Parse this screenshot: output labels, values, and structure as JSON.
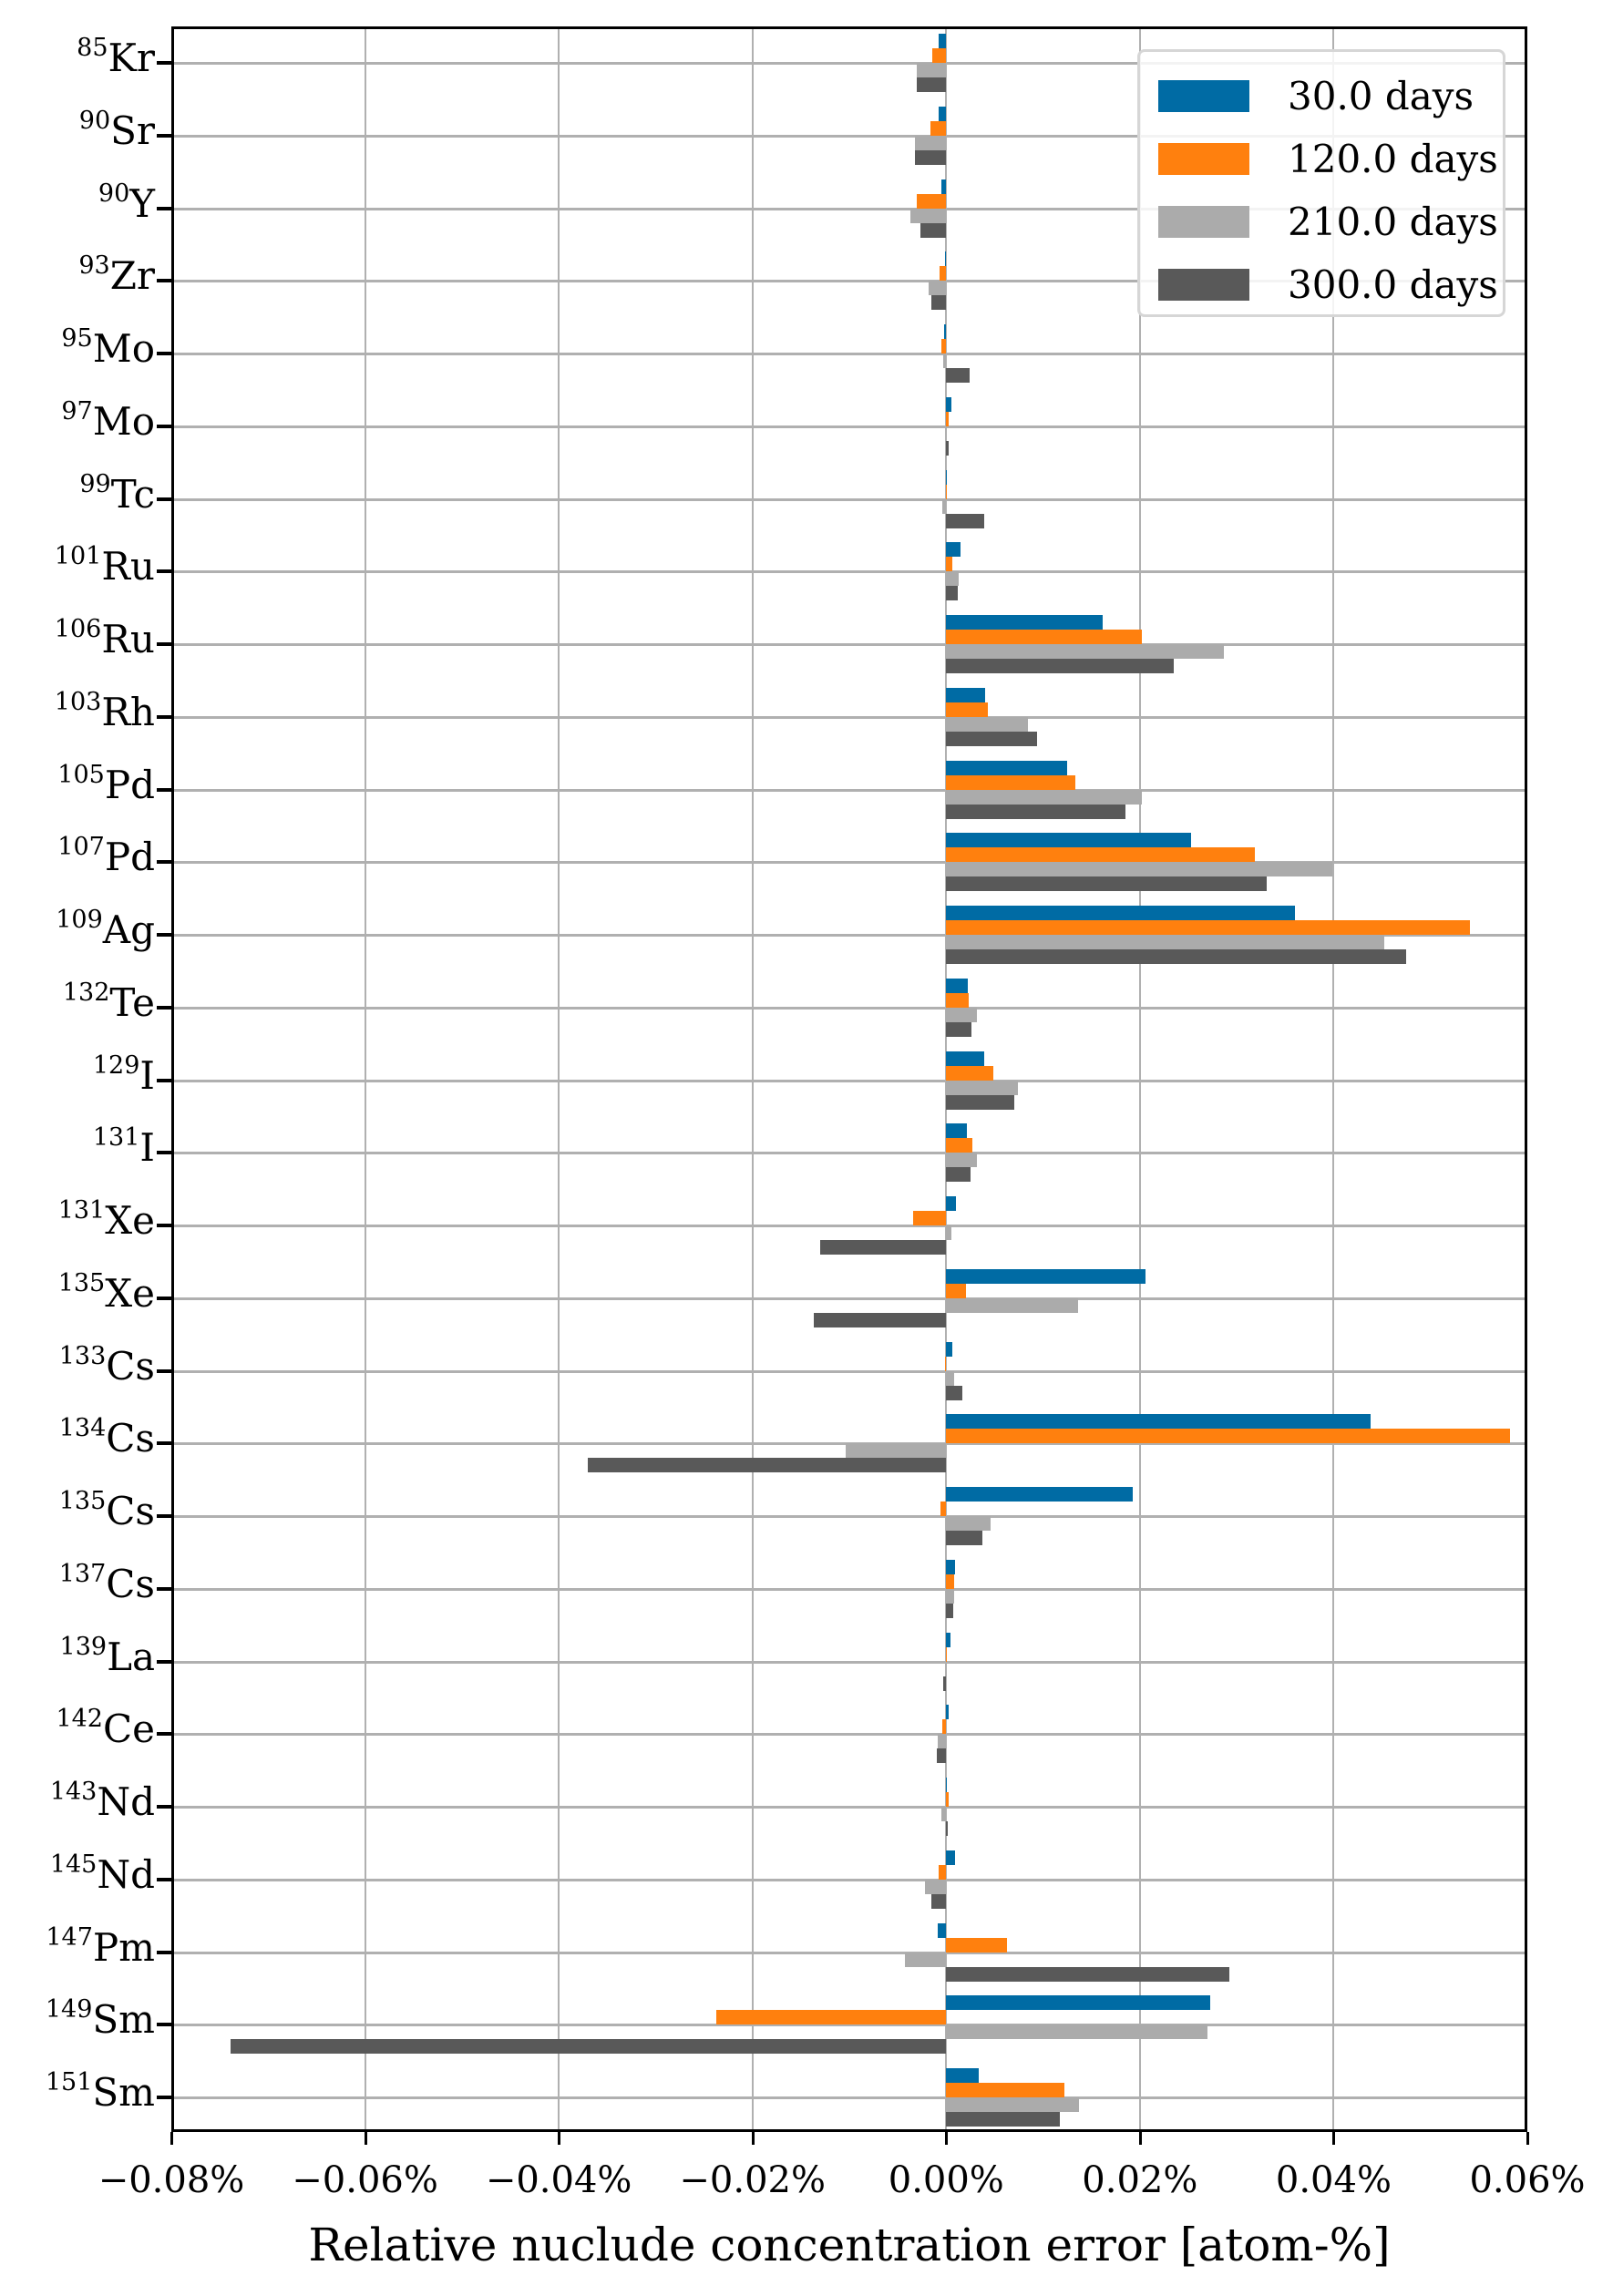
{
  "chart_data": {
    "type": "bar",
    "orientation": "horizontal",
    "title": "",
    "xlabel": "Relative nuclude concentration error [atom-%]",
    "ylabel": "",
    "xlim": [
      -0.08,
      0.06
    ],
    "xticks": [
      -0.08,
      -0.06,
      -0.04,
      -0.02,
      0.0,
      0.02,
      0.04,
      0.06
    ],
    "xtick_labels": [
      "−0.08%",
      "−0.06%",
      "−0.04%",
      "−0.02%",
      "0.00%",
      "0.02%",
      "0.04%",
      "0.06%"
    ],
    "grid": true,
    "legend_position": "upper right",
    "categories": [
      {
        "mass": "85",
        "element": "Kr"
      },
      {
        "mass": "90",
        "element": "Sr"
      },
      {
        "mass": "90",
        "element": "Y"
      },
      {
        "mass": "93",
        "element": "Zr"
      },
      {
        "mass": "95",
        "element": "Mo"
      },
      {
        "mass": "97",
        "element": "Mo"
      },
      {
        "mass": "99",
        "element": "Tc"
      },
      {
        "mass": "101",
        "element": "Ru"
      },
      {
        "mass": "106",
        "element": "Ru"
      },
      {
        "mass": "103",
        "element": "Rh"
      },
      {
        "mass": "105",
        "element": "Pd"
      },
      {
        "mass": "107",
        "element": "Pd"
      },
      {
        "mass": "109",
        "element": "Ag"
      },
      {
        "mass": "132",
        "element": "Te"
      },
      {
        "mass": "129",
        "element": "I"
      },
      {
        "mass": "131",
        "element": "I"
      },
      {
        "mass": "131",
        "element": "Xe"
      },
      {
        "mass": "135",
        "element": "Xe"
      },
      {
        "mass": "133",
        "element": "Cs"
      },
      {
        "mass": "134",
        "element": "Cs"
      },
      {
        "mass": "135",
        "element": "Cs"
      },
      {
        "mass": "137",
        "element": "Cs"
      },
      {
        "mass": "139",
        "element": "La"
      },
      {
        "mass": "142",
        "element": "Ce"
      },
      {
        "mass": "143",
        "element": "Nd"
      },
      {
        "mass": "145",
        "element": "Nd"
      },
      {
        "mass": "147",
        "element": "Pm"
      },
      {
        "mass": "149",
        "element": "Sm"
      },
      {
        "mass": "151",
        "element": "Sm"
      }
    ],
    "series": [
      {
        "name": "30.0 days",
        "color": "#006ba4",
        "values": [
          -0.0008,
          -0.0008,
          -0.0005,
          -0.0001,
          -0.0002,
          0.0005,
          0.0,
          0.0015,
          0.0162,
          0.004,
          0.0125,
          0.0253,
          0.036,
          0.0022,
          0.0039,
          0.0021,
          0.001,
          0.0206,
          0.0006,
          0.0438,
          0.0193,
          0.0009,
          0.0004,
          0.0003,
          0.0001,
          0.0009,
          -0.0009,
          0.0273,
          0.0034
        ]
      },
      {
        "name": "120.0 days",
        "color": "#ff800e",
        "values": [
          -0.0014,
          -0.0016,
          -0.003,
          -0.0007,
          -0.0005,
          0.0003,
          0.0001,
          0.0006,
          0.0202,
          0.0043,
          0.0133,
          0.0319,
          0.0541,
          0.0023,
          0.0049,
          0.0027,
          -0.0034,
          0.002,
          -0.0001,
          0.0582,
          -0.0006,
          0.0008,
          0.0001,
          -0.0004,
          0.0003,
          -0.0008,
          0.0063,
          -0.0237,
          0.0122
        ]
      },
      {
        "name": "210.0 days",
        "color": "#ababab",
        "values": [
          -0.003,
          -0.0032,
          -0.0037,
          -0.0018,
          -0.0003,
          0.0001,
          -0.0004,
          0.0013,
          0.0287,
          0.0084,
          0.0202,
          0.0399,
          0.0452,
          0.0032,
          0.0074,
          0.0032,
          0.0005,
          0.0136,
          0.0008,
          -0.0104,
          0.0046,
          0.0008,
          0.0,
          -0.0009,
          -0.0005,
          -0.0022,
          -0.0043,
          0.027,
          0.0137
        ]
      },
      {
        "name": "300.0 days",
        "color": "#595959",
        "values": [
          -0.003,
          -0.0032,
          -0.0027,
          -0.0015,
          0.0024,
          0.0003,
          0.0039,
          0.0012,
          0.0235,
          0.0094,
          0.0185,
          0.0331,
          0.0475,
          0.0026,
          0.007,
          0.0025,
          -0.013,
          -0.0137,
          0.0017,
          -0.037,
          0.0037,
          0.0007,
          -0.0003,
          -0.001,
          0.0002,
          -0.0015,
          0.0292,
          -0.0739,
          0.0117
        ]
      }
    ]
  },
  "legend": {
    "items": [
      {
        "label": "30.0 days",
        "color": "#006ba4"
      },
      {
        "label": "120.0 days",
        "color": "#ff800e"
      },
      {
        "label": "210.0 days",
        "color": "#ababab"
      },
      {
        "label": "300.0 days",
        "color": "#595959"
      }
    ]
  },
  "axes": {
    "x_title": "Relative nuclude concentration error [atom-%]"
  }
}
